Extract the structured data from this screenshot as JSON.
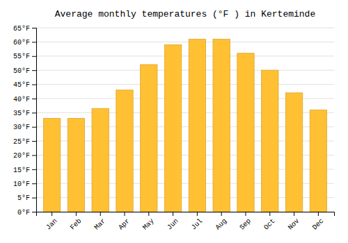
{
  "chart_data": {
    "type": "bar",
    "title": "Average monthly temperatures (°F ) in Kerteminde",
    "categories": [
      "Jan",
      "Feb",
      "Mar",
      "Apr",
      "May",
      "Jun",
      "Jul",
      "Aug",
      "Sep",
      "Oct",
      "Nov",
      "Dec"
    ],
    "values": [
      33,
      33,
      36.5,
      43,
      52,
      59,
      61,
      61,
      56,
      50,
      42,
      36
    ],
    "color": "#FFC033",
    "ylim": [
      0,
      65
    ],
    "yticks": [
      {
        "value": 0,
        "label": "0°F"
      },
      {
        "value": 5,
        "label": "5°F"
      },
      {
        "value": 10,
        "label": "10°F"
      },
      {
        "value": 15,
        "label": "15°F"
      },
      {
        "value": 20,
        "label": "20°F"
      },
      {
        "value": 25,
        "label": "25°F"
      },
      {
        "value": 30,
        "label": "30°F"
      },
      {
        "value": 35,
        "label": "35°F"
      },
      {
        "value": 40,
        "label": "40°F"
      },
      {
        "value": 45,
        "label": "45°F"
      },
      {
        "value": 50,
        "label": "50°F"
      },
      {
        "value": 55,
        "label": "55°F"
      },
      {
        "value": 60,
        "label": "60°F"
      },
      {
        "value": 65,
        "label": "65°F"
      }
    ],
    "grid": true
  }
}
